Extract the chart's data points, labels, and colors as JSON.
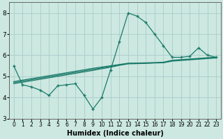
{
  "xlabel": "Humidex (Indice chaleur)",
  "bg_color": "#cce8e0",
  "grid_color": "#aacccc",
  "line_color": "#1a7a6a",
  "xlim": [
    -0.5,
    23.5
  ],
  "ylim": [
    3,
    8.5
  ],
  "yticks": [
    3,
    4,
    5,
    6,
    7,
    8
  ],
  "xticks": [
    0,
    1,
    2,
    3,
    4,
    5,
    6,
    7,
    8,
    9,
    10,
    11,
    12,
    13,
    14,
    15,
    16,
    17,
    18,
    19,
    20,
    21,
    22,
    23
  ],
  "line_main": [
    5.5,
    4.6,
    4.5,
    4.35,
    4.1,
    4.55,
    4.6,
    4.65,
    4.1,
    3.45,
    4.0,
    5.3,
    6.65,
    8.0,
    7.85,
    7.55,
    7.0,
    6.45,
    5.9,
    5.9,
    5.95,
    6.35,
    6.0,
    5.9
  ],
  "line_reg1": [
    4.7,
    4.77,
    4.84,
    4.91,
    4.98,
    5.05,
    5.12,
    5.19,
    5.26,
    5.33,
    5.4,
    5.47,
    5.54,
    5.61,
    5.62,
    5.63,
    5.64,
    5.65,
    5.74,
    5.77,
    5.8,
    5.83,
    5.86,
    5.89
  ],
  "line_reg2": [
    4.75,
    4.82,
    4.89,
    4.96,
    5.03,
    5.1,
    5.17,
    5.24,
    5.31,
    5.38,
    5.44,
    5.5,
    5.56,
    5.62,
    5.63,
    5.64,
    5.65,
    5.67,
    5.76,
    5.79,
    5.82,
    5.85,
    5.88,
    5.9
  ],
  "line_reg3": [
    4.65,
    4.72,
    4.79,
    4.86,
    4.93,
    5.0,
    5.07,
    5.14,
    5.21,
    5.28,
    5.36,
    5.43,
    5.52,
    5.59,
    5.6,
    5.61,
    5.63,
    5.64,
    5.72,
    5.75,
    5.78,
    5.81,
    5.84,
    5.87
  ]
}
